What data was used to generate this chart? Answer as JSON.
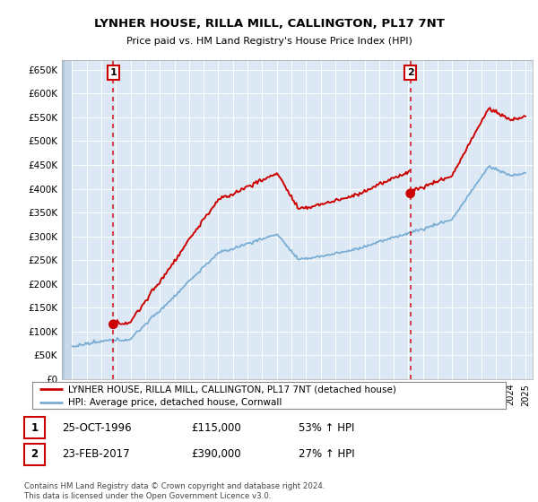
{
  "title": "LYNHER HOUSE, RILLA MILL, CALLINGTON, PL17 7NT",
  "subtitle": "Price paid vs. HM Land Registry's House Price Index (HPI)",
  "house_color": "#cc0000",
  "hpi_color": "#7aadd4",
  "background_color": "#ffffff",
  "plot_bg_color": "#dce9f5",
  "ylim": [
    0,
    670000
  ],
  "yticks": [
    0,
    50000,
    100000,
    150000,
    200000,
    250000,
    300000,
    350000,
    400000,
    450000,
    500000,
    550000,
    600000,
    650000
  ],
  "sale1_year": 1996.82,
  "sale1_price": 115000,
  "sale2_year": 2017.14,
  "sale2_price": 390000,
  "legend_house": "LYNHER HOUSE, RILLA MILL, CALLINGTON, PL17 7NT (detached house)",
  "legend_hpi": "HPI: Average price, detached house, Cornwall",
  "table_row1": [
    "1",
    "25-OCT-1996",
    "£115,000",
    "53% ↑ HPI"
  ],
  "table_row2": [
    "2",
    "23-FEB-2017",
    "£390,000",
    "27% ↑ HPI"
  ],
  "footer": "Contains HM Land Registry data © Crown copyright and database right 2024.\nThis data is licensed under the Open Government Licence v3.0."
}
